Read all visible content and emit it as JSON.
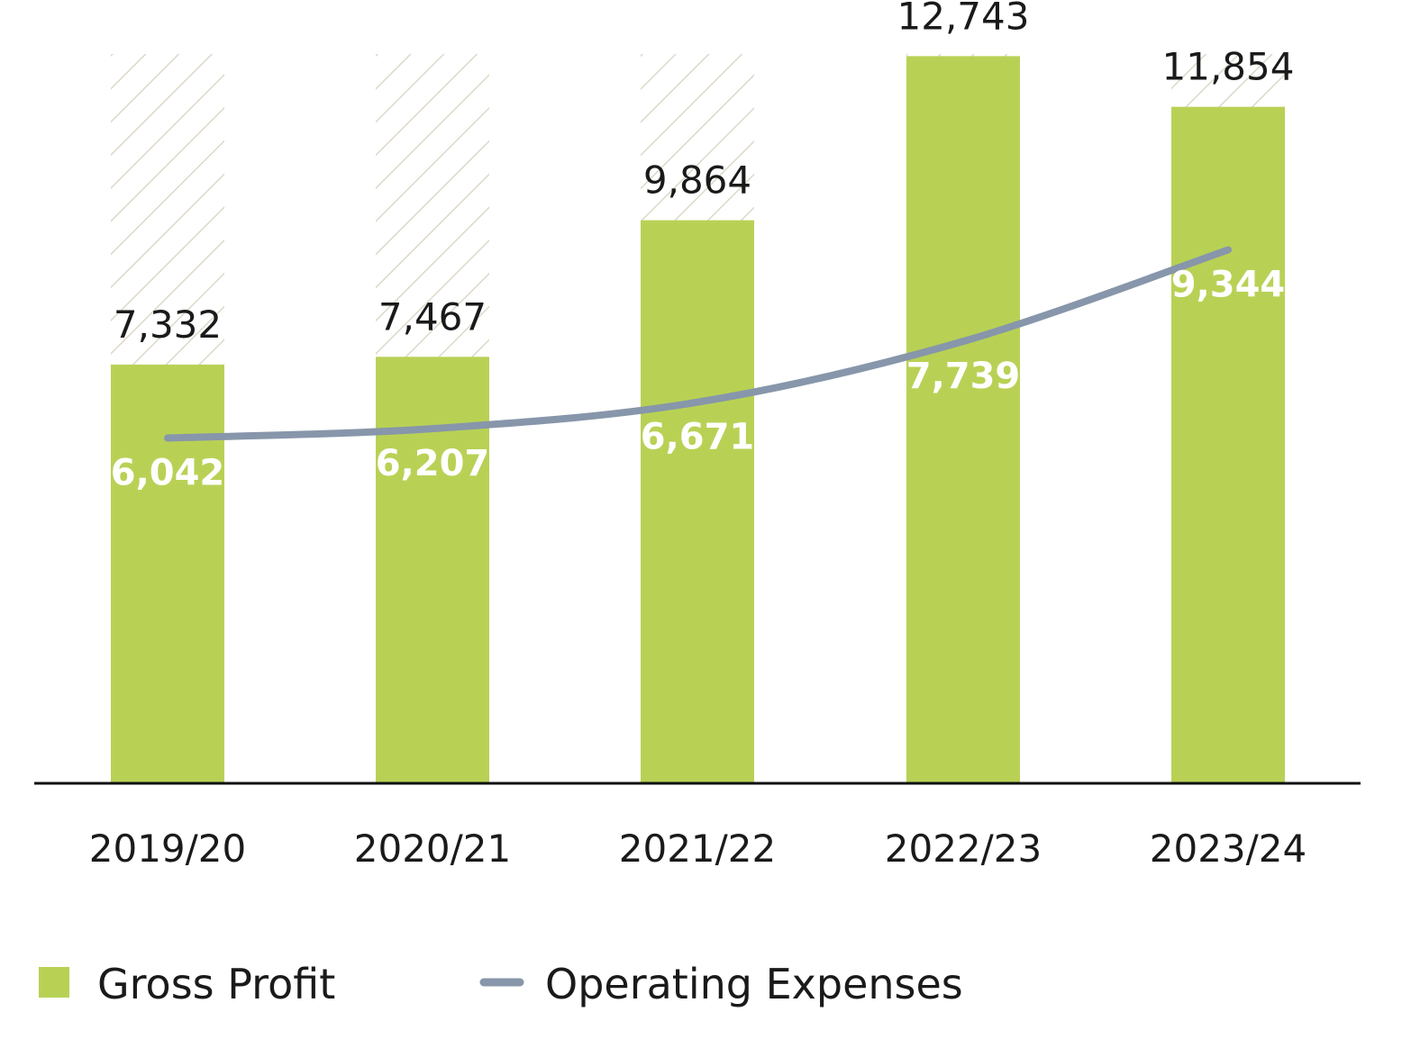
{
  "chart_data": {
    "type": "bar",
    "categories": [
      "2019/20",
      "2020/21",
      "2021/22",
      "2022/23",
      "2023/24"
    ],
    "series": [
      {
        "name": "Gross Profit",
        "type": "bar",
        "values": [
          7332,
          7467,
          9864,
          12743,
          11854
        ],
        "labels": [
          "7,332",
          "7,467",
          "9,864",
          "12,743",
          "11,854"
        ]
      },
      {
        "name": "Operating Expenses",
        "type": "line",
        "values": [
          6042,
          6207,
          6671,
          7739,
          9344
        ],
        "labels": [
          "6,042",
          "6,207",
          "6,671",
          "7,739",
          "9,344"
        ]
      }
    ],
    "ylim": [
      0,
      16000
    ],
    "grid": false,
    "legend": "bottom-left",
    "colors": {
      "bar": "#b8d155",
      "line": "#8796aa",
      "hatch": "#ddd8c8",
      "axis": "#111111"
    }
  }
}
